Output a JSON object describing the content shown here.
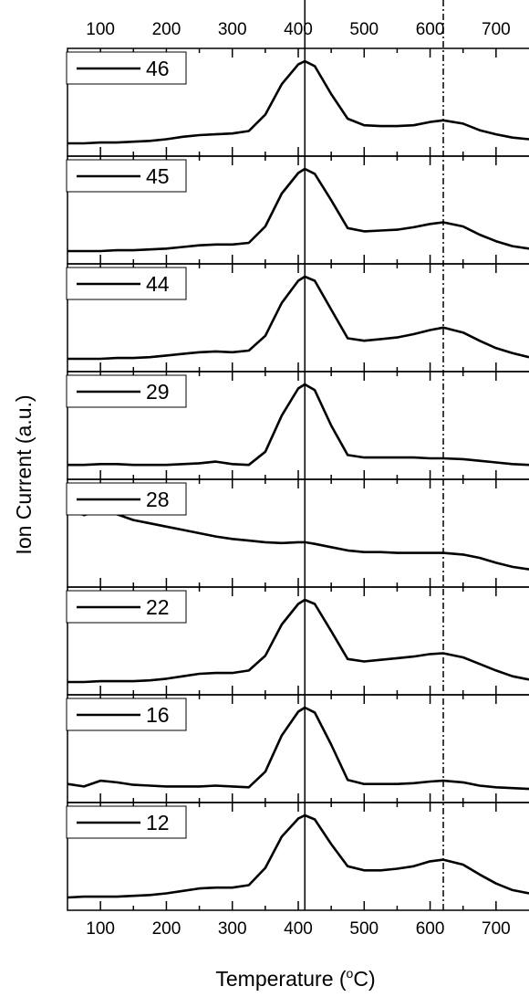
{
  "chart_data": {
    "type": "line",
    "layout": "stacked-panels",
    "xlabel": "Temperature (°C)",
    "xlabel_base": "Temperature (",
    "xlabel_sup": "o",
    "xlabel_end": "C)",
    "ylabel": "Ion Current (a.u.)",
    "xlim": [
      50,
      750
    ],
    "x_ticks": [
      100,
      200,
      300,
      400,
      500,
      600,
      700
    ],
    "reference_lines": [
      {
        "x": 410,
        "style": "solid"
      },
      {
        "x": 620,
        "style": "dash-dot"
      }
    ],
    "x": [
      50,
      75,
      100,
      125,
      150,
      175,
      200,
      225,
      250,
      275,
      300,
      325,
      350,
      375,
      400,
      410,
      425,
      450,
      475,
      500,
      525,
      550,
      575,
      600,
      620,
      650,
      675,
      700,
      725,
      750
    ],
    "series": [
      {
        "name": "46",
        "values": [
          0.0,
          0.0,
          0.01,
          0.01,
          0.02,
          0.03,
          0.05,
          0.08,
          0.1,
          0.11,
          0.12,
          0.15,
          0.35,
          0.72,
          0.96,
          1.0,
          0.94,
          0.6,
          0.3,
          0.22,
          0.21,
          0.21,
          0.22,
          0.26,
          0.28,
          0.24,
          0.16,
          0.11,
          0.07,
          0.05
        ]
      },
      {
        "name": "45",
        "values": [
          0.0,
          0.0,
          0.0,
          0.01,
          0.01,
          0.02,
          0.03,
          0.05,
          0.07,
          0.08,
          0.08,
          0.1,
          0.3,
          0.7,
          0.95,
          1.0,
          0.94,
          0.62,
          0.28,
          0.24,
          0.25,
          0.26,
          0.29,
          0.33,
          0.35,
          0.3,
          0.2,
          0.12,
          0.06,
          0.03
        ]
      },
      {
        "name": "44",
        "values": [
          0.0,
          0.0,
          0.0,
          0.01,
          0.01,
          0.02,
          0.04,
          0.06,
          0.08,
          0.09,
          0.08,
          0.1,
          0.28,
          0.68,
          0.95,
          1.0,
          0.95,
          0.6,
          0.25,
          0.22,
          0.24,
          0.26,
          0.3,
          0.35,
          0.38,
          0.32,
          0.22,
          0.13,
          0.07,
          0.02
        ]
      },
      {
        "name": "29",
        "values": [
          0.02,
          0.02,
          0.03,
          0.03,
          0.02,
          0.02,
          0.02,
          0.03,
          0.04,
          0.06,
          0.03,
          0.02,
          0.18,
          0.62,
          0.95,
          1.0,
          0.93,
          0.5,
          0.14,
          0.11,
          0.11,
          0.11,
          0.11,
          0.1,
          0.1,
          0.09,
          0.07,
          0.05,
          0.03,
          0.02
        ]
      },
      {
        "name": "28",
        "values": [
          0.82,
          0.72,
          0.78,
          0.73,
          0.66,
          0.62,
          0.58,
          0.54,
          0.5,
          0.46,
          0.43,
          0.41,
          0.39,
          0.38,
          0.39,
          0.39,
          0.37,
          0.33,
          0.29,
          0.27,
          0.27,
          0.26,
          0.26,
          0.26,
          0.26,
          0.24,
          0.2,
          0.14,
          0.09,
          0.06
        ]
      },
      {
        "name": "22",
        "values": [
          0.0,
          0.0,
          0.01,
          0.01,
          0.01,
          0.02,
          0.04,
          0.07,
          0.1,
          0.11,
          0.11,
          0.14,
          0.32,
          0.7,
          0.95,
          1.0,
          0.95,
          0.62,
          0.28,
          0.25,
          0.27,
          0.29,
          0.31,
          0.34,
          0.35,
          0.3,
          0.22,
          0.14,
          0.07,
          0.03
        ]
      },
      {
        "name": "16",
        "values": [
          0.07,
          0.04,
          0.11,
          0.09,
          0.06,
          0.05,
          0.04,
          0.04,
          0.04,
          0.05,
          0.04,
          0.03,
          0.22,
          0.66,
          0.95,
          1.0,
          0.94,
          0.55,
          0.12,
          0.07,
          0.07,
          0.07,
          0.08,
          0.1,
          0.11,
          0.09,
          0.05,
          0.03,
          0.02,
          0.01
        ]
      },
      {
        "name": "12",
        "values": [
          0.0,
          0.01,
          0.01,
          0.01,
          0.02,
          0.03,
          0.05,
          0.08,
          0.11,
          0.12,
          0.12,
          0.15,
          0.36,
          0.74,
          0.96,
          1.0,
          0.95,
          0.65,
          0.38,
          0.33,
          0.33,
          0.35,
          0.38,
          0.44,
          0.46,
          0.4,
          0.28,
          0.17,
          0.09,
          0.05
        ]
      }
    ]
  }
}
